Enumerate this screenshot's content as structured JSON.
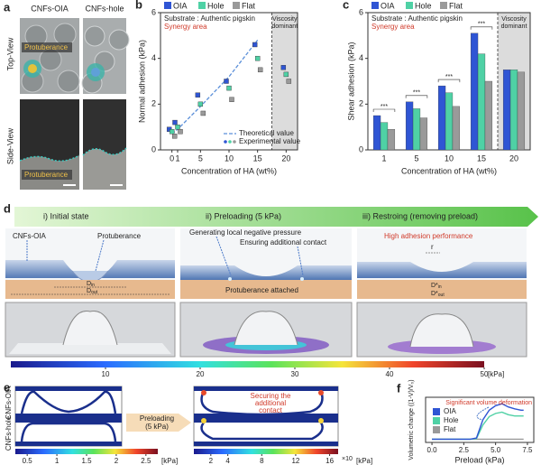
{
  "panel_a": {
    "label": "a",
    "columns": [
      "CNFs-OIA",
      "CNFs-hole"
    ],
    "rows": [
      "Top-View",
      "Side-View"
    ],
    "annotation": "Protuberance"
  },
  "chart_data": [
    {
      "label": "b",
      "type": "scatter",
      "xlabel": "Concentration of HA (wt%)",
      "ylabel": "Normal adhesion (kPa)",
      "substrate": "Substrate : Authentic pigskin",
      "synergy": "Synergy area",
      "viscosity": [
        "Viscosity",
        "dominant"
      ],
      "x": [
        0,
        1,
        5,
        10,
        15,
        20
      ],
      "series": [
        {
          "name": "OIA",
          "color": "#2f55d4",
          "values": [
            0.9,
            1.2,
            2.4,
            3.0,
            4.6,
            3.6
          ]
        },
        {
          "name": "Hole",
          "color": "#4fd1a5",
          "values": [
            0.8,
            1.0,
            2.0,
            2.7,
            4.0,
            3.3
          ]
        },
        {
          "name": "Flat",
          "color": "#9a9a9a",
          "values": [
            0.6,
            0.8,
            1.6,
            2.2,
            3.5,
            3.0
          ]
        }
      ],
      "theoretical": {
        "name": "Theoretical value",
        "color": "#5b8fd9",
        "values": [
          0.7,
          0.9,
          1.9,
          3.2,
          4.8,
          null
        ]
      },
      "experimental_label": "Experimental value",
      "xlim": [
        -2,
        22
      ],
      "ylim": [
        0,
        6
      ],
      "xticks": [
        0,
        1,
        5,
        10,
        15,
        20
      ],
      "yticks": [
        0,
        2,
        4,
        6
      ]
    },
    {
      "label": "c",
      "type": "bar",
      "xlabel": "Concentration of HA (wt%)",
      "ylabel": "Shear adhesion (kPa)",
      "substrate": "Substrate : Authentic pigskin",
      "synergy": "Synergy area",
      "viscosity": [
        "Viscosity",
        "dominant"
      ],
      "categories": [
        "1",
        "5",
        "10",
        "15",
        "20"
      ],
      "series": [
        {
          "name": "OIA",
          "color": "#2f55d4",
          "values": [
            1.5,
            2.1,
            2.8,
            5.1,
            3.5
          ]
        },
        {
          "name": "Hole",
          "color": "#4fd1a5",
          "values": [
            1.2,
            1.8,
            2.5,
            4.2,
            3.5
          ]
        },
        {
          "name": "Flat",
          "color": "#9a9a9a",
          "values": [
            0.9,
            1.4,
            1.9,
            3.0,
            3.4
          ]
        }
      ],
      "significance": "***",
      "ylim": [
        0,
        6
      ],
      "yticks": [
        0,
        2,
        4,
        6
      ]
    },
    {
      "label": "f",
      "type": "line",
      "xlabel": "Preload (kPa)",
      "ylabel": "Volumetric change ((1-V)/V₀)",
      "annotation": "Significant volume deformation",
      "x": [
        0,
        1,
        2,
        3,
        3.5,
        4,
        4.5,
        5,
        5.5,
        6,
        6.5,
        7,
        7.2
      ],
      "series": [
        {
          "name": "OIA",
          "color": "#2f55d4",
          "values": [
            0,
            0,
            0,
            0,
            0.02,
            0.3,
            0.45,
            0.52,
            0.55,
            0.5,
            0.47,
            0.45,
            0.45
          ]
        },
        {
          "name": "Hole",
          "color": "#4fd1a5",
          "values": [
            0,
            0,
            0,
            0,
            0.01,
            0.22,
            0.35,
            0.4,
            0.42,
            0.38,
            0.36,
            0.36,
            0.36
          ]
        },
        {
          "name": "Flat",
          "color": "#9a9a9a",
          "values": [
            0,
            0,
            0,
            0,
            0,
            0,
            0,
            0,
            0,
            0,
            0,
            0,
            0
          ]
        }
      ],
      "xlim": [
        -0.5,
        8
      ],
      "ylim": [
        -0.05,
        0.65
      ],
      "xticks": [
        {
          "value": 0,
          "label": "0.0"
        },
        {
          "value": 2.5,
          "label": "2.5"
        },
        {
          "value": 5,
          "label": "5.0"
        },
        {
          "value": 7.5,
          "label": "7.5"
        }
      ]
    }
  ],
  "panel_d": {
    "label": "d",
    "steps": [
      "i) Initial state",
      "ii) Preloading (5 kPa)",
      "iii) Restroing (removing preload)"
    ],
    "texts": {
      "cnfs_oia": "CNFs-OIA",
      "protuberance": "Protuberance",
      "negative_pressure": "Generating local negative pressure",
      "additional_contact": "Ensuring additional contact",
      "attached": "Protuberance attached",
      "high_adhesion": "High adhesion performance",
      "r": "r",
      "d": "D",
      "d_star": "D*",
      "in": "in",
      "out": "out"
    },
    "colorbar": {
      "lim": [
        0,
        50
      ],
      "ticks": [
        10,
        20,
        30,
        40,
        50
      ],
      "unit": "[kPa]"
    }
  },
  "panel_e": {
    "label": "e",
    "rows": [
      "CNFs-OIA",
      "CNFs-hole"
    ],
    "arrow": [
      "Preloading",
      "(5 kPa)"
    ],
    "annotation": [
      "Securing the",
      "additional",
      "contact"
    ],
    "colorbar_left": {
      "lim": [
        0.3,
        2.7
      ],
      "ticks": [
        0.5,
        1,
        1.5,
        2,
        2.5
      ],
      "unit": "[kPa]"
    },
    "colorbar_right": {
      "lim": [
        0,
        17
      ],
      "ticks": [
        2,
        4,
        8,
        12,
        16
      ],
      "multiplier": "×10",
      "unit": "[kPa]"
    }
  }
}
